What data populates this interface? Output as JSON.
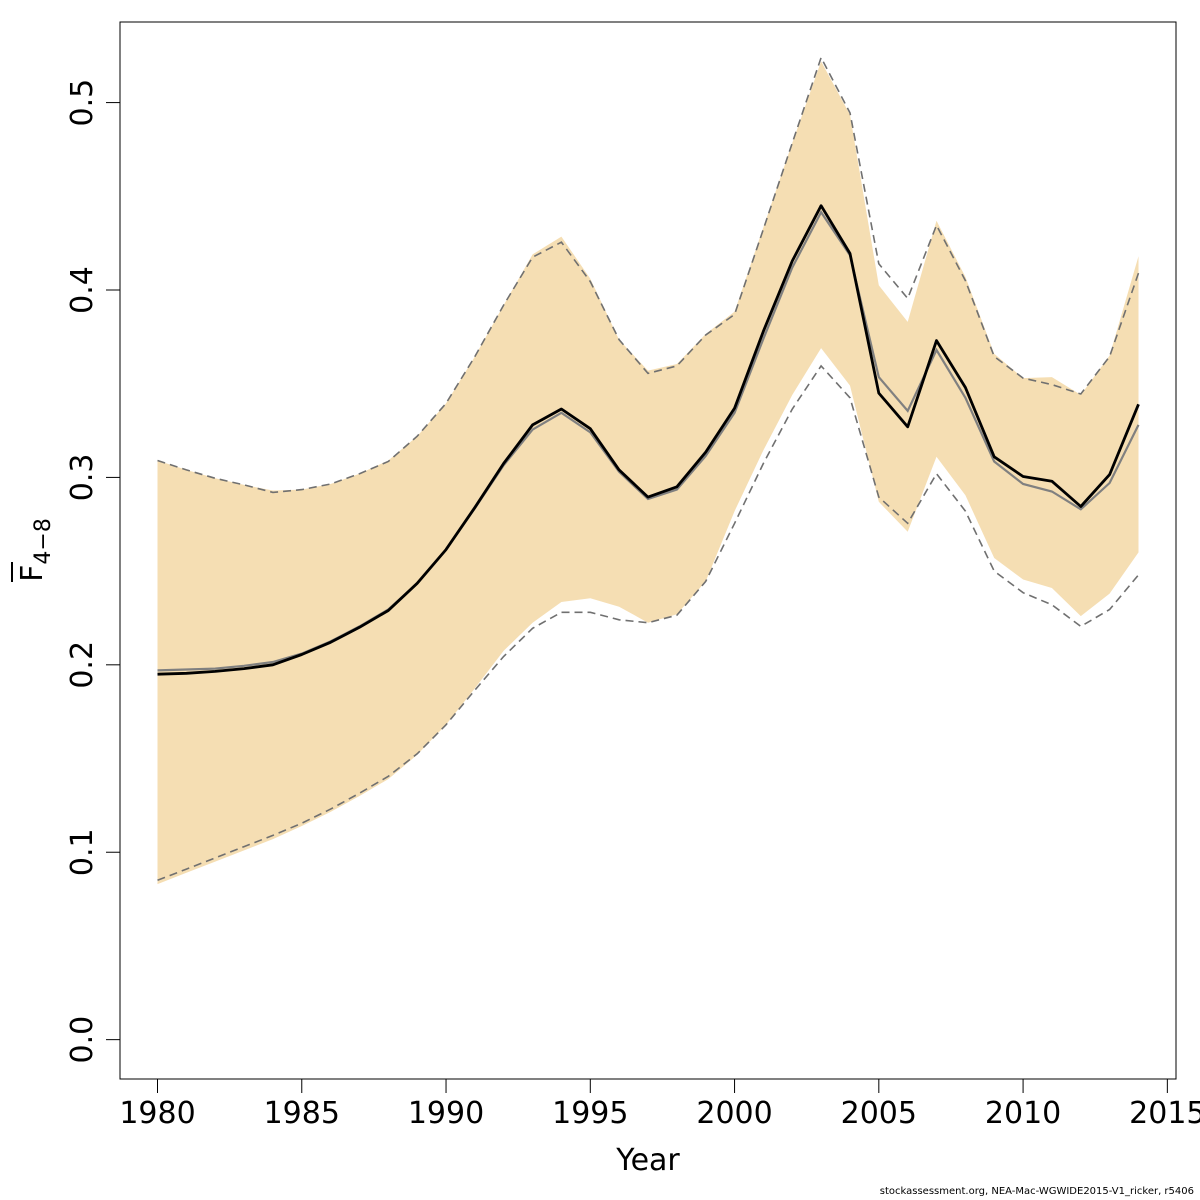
{
  "chart_data": {
    "type": "line",
    "xlabel": "Year",
    "ylabel_main": "F",
    "ylabel_sub": "4−8",
    "xlim": [
      1978.7,
      2015.3
    ],
    "ylim": [
      -0.021,
      0.543
    ],
    "x_ticks": [
      1980,
      1985,
      1990,
      1995,
      2000,
      2005,
      2010,
      2015
    ],
    "x_tick_labels": [
      "1980",
      "1985",
      "1990",
      "1995",
      "2000",
      "2005",
      "2010",
      "2015"
    ],
    "y_ticks": [
      0.0,
      0.1,
      0.2,
      0.3,
      0.4,
      0.5
    ],
    "y_tick_labels": [
      "0.0",
      "0.1",
      "0.2",
      "0.3",
      "0.4",
      "0.5"
    ],
    "grid": false,
    "legend": "none",
    "colors": {
      "band": "#f5deb3",
      "estimate": "#000000",
      "alt_estimate": "#808080",
      "dashed": "#707070"
    },
    "x": [
      1980,
      1981,
      1982,
      1983,
      1984,
      1985,
      1986,
      1987,
      1988,
      1989,
      1990,
      1991,
      1992,
      1993,
      1994,
      1995,
      1996,
      1997,
      1998,
      1999,
      2000,
      2001,
      2002,
      2003,
      2004,
      2005,
      2006,
      2007,
      2008,
      2009,
      2010,
      2011,
      2012,
      2013,
      2014
    ],
    "series": [
      {
        "role": "estimate",
        "values": [
          0.195,
          0.1955,
          0.1965,
          0.198,
          0.2,
          0.2055,
          0.212,
          0.22,
          0.229,
          0.2435,
          0.2615,
          0.284,
          0.3075,
          0.328,
          0.3365,
          0.326,
          0.304,
          0.2895,
          0.295,
          0.3135,
          0.337,
          0.378,
          0.4155,
          0.445,
          0.4195,
          0.345,
          0.327,
          0.373,
          0.348,
          0.311,
          0.3005,
          0.298,
          0.2845,
          0.3015,
          0.339
        ]
      },
      {
        "role": "alt_estimate",
        "values": [
          0.197,
          0.1975,
          0.198,
          0.1995,
          0.2015,
          0.206,
          0.2125,
          0.2205,
          0.2295,
          0.2435,
          0.2615,
          0.2835,
          0.3065,
          0.3255,
          0.3345,
          0.324,
          0.303,
          0.2885,
          0.2935,
          0.3115,
          0.3345,
          0.374,
          0.412,
          0.4415,
          0.4185,
          0.3535,
          0.3355,
          0.368,
          0.3425,
          0.3085,
          0.2965,
          0.2925,
          0.283,
          0.297,
          0.328
        ]
      },
      {
        "role": "band_upper",
        "values": [
          0.309,
          0.304,
          0.2995,
          0.296,
          0.293,
          0.2935,
          0.2965,
          0.302,
          0.309,
          0.322,
          0.3395,
          0.3645,
          0.392,
          0.419,
          0.4285,
          0.406,
          0.3735,
          0.357,
          0.3605,
          0.3765,
          0.3885,
          0.4335,
          0.4785,
          0.522,
          0.4935,
          0.4025,
          0.383,
          0.437,
          0.407,
          0.366,
          0.353,
          0.3535,
          0.344,
          0.365,
          0.418
        ]
      },
      {
        "role": "band_lower",
        "values": [
          0.083,
          0.089,
          0.095,
          0.101,
          0.107,
          0.114,
          0.1215,
          0.13,
          0.139,
          0.152,
          0.168,
          0.1875,
          0.2075,
          0.2225,
          0.2335,
          0.2355,
          0.231,
          0.2225,
          0.227,
          0.2445,
          0.282,
          0.3145,
          0.344,
          0.369,
          0.349,
          0.287,
          0.271,
          0.311,
          0.2905,
          0.257,
          0.2455,
          0.241,
          0.226,
          0.238,
          0.26
        ]
      },
      {
        "role": "dashed_upper",
        "values": [
          0.309,
          0.304,
          0.2995,
          0.296,
          0.292,
          0.2935,
          0.2965,
          0.302,
          0.3085,
          0.322,
          0.3395,
          0.3645,
          0.392,
          0.4175,
          0.4255,
          0.4045,
          0.3735,
          0.3555,
          0.3595,
          0.376,
          0.387,
          0.4325,
          0.4785,
          0.524,
          0.4945,
          0.414,
          0.3955,
          0.4345,
          0.405,
          0.3645,
          0.353,
          0.3495,
          0.3445,
          0.3645,
          0.409
        ]
      },
      {
        "role": "dashed_lower",
        "values": [
          0.085,
          0.091,
          0.097,
          0.103,
          0.109,
          0.1155,
          0.123,
          0.1315,
          0.1405,
          0.1525,
          0.168,
          0.1865,
          0.2045,
          0.2195,
          0.228,
          0.228,
          0.224,
          0.2225,
          0.2265,
          0.2445,
          0.2755,
          0.3075,
          0.3365,
          0.3595,
          0.3425,
          0.2895,
          0.2755,
          0.302,
          0.282,
          0.25,
          0.2385,
          0.232,
          0.2205,
          0.2295,
          0.248
        ]
      }
    ]
  },
  "footer": {
    "credit": "stockassessment.org, NEA-Mac-WGWIDE2015-V1_ricker, r5406"
  }
}
